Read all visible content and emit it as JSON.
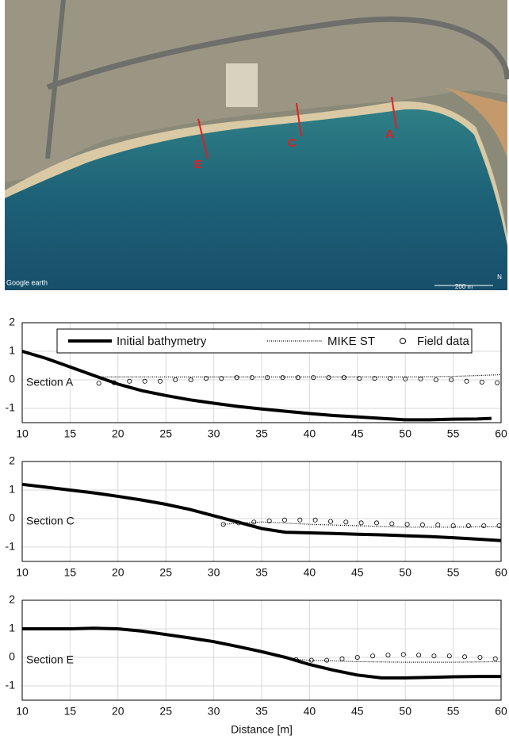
{
  "image": {
    "labels": [
      "A",
      "C",
      "E"
    ],
    "credit": "Google earth",
    "scale": "200 m",
    "north": "N"
  },
  "chart_data": [
    {
      "type": "line",
      "annotation": "Section A",
      "xlim": [
        10,
        60
      ],
      "ylim": [
        -1.5,
        2
      ],
      "xticks": [
        10,
        15,
        20,
        25,
        30,
        35,
        40,
        45,
        50,
        55,
        60
      ],
      "yticks": [
        -1,
        0,
        1,
        2
      ],
      "grid": true,
      "legend": "upper center",
      "series": [
        {
          "name": "Initial bathymetry",
          "color": "#000000",
          "style": "thick",
          "x": [
            10,
            12.5,
            15,
            17.5,
            20,
            22.5,
            25,
            27.5,
            30,
            32.5,
            35,
            37.5,
            40,
            42.5,
            45,
            47.5,
            50,
            52.5,
            55,
            57.5,
            59
          ],
          "values": [
            1.0,
            0.75,
            0.45,
            0.15,
            -0.15,
            -0.38,
            -0.55,
            -0.7,
            -0.82,
            -0.93,
            -1.02,
            -1.1,
            -1.18,
            -1.25,
            -1.3,
            -1.35,
            -1.4,
            -1.4,
            -1.38,
            -1.37,
            -1.35
          ]
        },
        {
          "name": "MIKE ST",
          "color": "#000000",
          "style": "dotted",
          "x": [
            18,
            25,
            30,
            35,
            40,
            45,
            50,
            55,
            60
          ],
          "values": [
            0.1,
            0.1,
            0.1,
            0.1,
            0.1,
            0.1,
            0.1,
            0.12,
            0.18
          ]
        },
        {
          "name": "Field data",
          "color": "#000000",
          "style": "markers",
          "x": [
            18,
            19.6,
            21.2,
            22.8,
            24.4,
            26,
            27.6,
            29.2,
            30.8,
            32.4,
            34,
            35.6,
            37.2,
            38.8,
            40.4,
            42,
            43.6,
            45.2,
            46.8,
            48.4,
            50,
            51.6,
            53.2,
            54.8,
            56.4,
            58,
            59.6
          ],
          "values": [
            -0.12,
            -0.1,
            -0.05,
            -0.05,
            -0.05,
            0,
            0,
            0.05,
            0.05,
            0.08,
            0.08,
            0.08,
            0.08,
            0.08,
            0.08,
            0.08,
            0.08,
            0.05,
            0.05,
            0.05,
            0.03,
            0.03,
            0,
            0,
            -0.05,
            -0.08,
            -0.1
          ]
        }
      ]
    },
    {
      "type": "line",
      "annotation": "Section C",
      "xlim": [
        10,
        60
      ],
      "ylim": [
        -1.5,
        2
      ],
      "xticks": [
        10,
        15,
        20,
        25,
        30,
        35,
        40,
        45,
        50,
        55,
        60
      ],
      "yticks": [
        -1,
        0,
        1,
        2
      ],
      "grid": true,
      "series": [
        {
          "color": "#000000",
          "style": "thick",
          "x": [
            10,
            12.5,
            15,
            17.5,
            20,
            22.5,
            25,
            27.5,
            30,
            32.5,
            35,
            37.5,
            40,
            42.5,
            45,
            47.5,
            50,
            52.5,
            55,
            57.5,
            60
          ],
          "values": [
            1.2,
            1.1,
            1.0,
            0.9,
            0.78,
            0.65,
            0.5,
            0.32,
            0.1,
            -0.12,
            -0.35,
            -0.48,
            -0.5,
            -0.52,
            -0.55,
            -0.57,
            -0.6,
            -0.63,
            -0.67,
            -0.72,
            -0.77
          ]
        },
        {
          "color": "#000000",
          "style": "dotted",
          "x": [
            31,
            33,
            35,
            37,
            40,
            45,
            50,
            55,
            60
          ],
          "values": [
            -0.2,
            -0.15,
            -0.12,
            -0.15,
            -0.2,
            -0.25,
            -0.3,
            -0.3,
            -0.28
          ]
        },
        {
          "color": "#000000",
          "style": "markers",
          "x": [
            31,
            32.6,
            34.2,
            35.8,
            37.4,
            39,
            40.6,
            42.2,
            43.8,
            45.4,
            47,
            48.6,
            50.2,
            51.8,
            53.4,
            55,
            56.6,
            58.2,
            59.8
          ],
          "values": [
            -0.2,
            -0.15,
            -0.12,
            -0.08,
            -0.05,
            -0.05,
            -0.05,
            -0.1,
            -0.12,
            -0.15,
            -0.15,
            -0.18,
            -0.2,
            -0.22,
            -0.22,
            -0.25,
            -0.25,
            -0.25,
            -0.25
          ]
        }
      ]
    },
    {
      "type": "line",
      "annotation": "Section E",
      "xlabel": "Distance [m]",
      "xlim": [
        10,
        60
      ],
      "ylim": [
        -1.5,
        2
      ],
      "xticks": [
        10,
        15,
        20,
        25,
        30,
        35,
        40,
        45,
        50,
        55,
        60
      ],
      "yticks": [
        -1,
        0,
        1,
        2
      ],
      "grid": true,
      "series": [
        {
          "color": "#000000",
          "style": "thick",
          "x": [
            10,
            12.5,
            15,
            17.5,
            20,
            22.5,
            25,
            27.5,
            30,
            32.5,
            35,
            37.5,
            40,
            42.5,
            45,
            47.5,
            50,
            52.5,
            55,
            57.5,
            60
          ],
          "values": [
            1.0,
            1.0,
            1.0,
            1.02,
            1.0,
            0.92,
            0.8,
            0.68,
            0.55,
            0.38,
            0.2,
            0.0,
            -0.25,
            -0.45,
            -0.62,
            -0.72,
            -0.72,
            -0.7,
            -0.68,
            -0.67,
            -0.67
          ]
        },
        {
          "color": "#000000",
          "style": "dotted",
          "x": [
            38,
            40,
            45,
            50,
            55,
            60
          ],
          "values": [
            -0.05,
            -0.1,
            -0.15,
            -0.17,
            -0.17,
            -0.15
          ]
        },
        {
          "color": "#000000",
          "style": "markers",
          "x": [
            38.6,
            40.2,
            41.8,
            43.4,
            45,
            46.6,
            48.2,
            49.8,
            51.4,
            53,
            54.6,
            56.2,
            57.8,
            59.4
          ],
          "values": [
            -0.08,
            -0.1,
            -0.1,
            -0.05,
            0,
            0.05,
            0.08,
            0.1,
            0.08,
            0.05,
            0.05,
            0.02,
            0,
            -0.05
          ]
        }
      ]
    }
  ]
}
